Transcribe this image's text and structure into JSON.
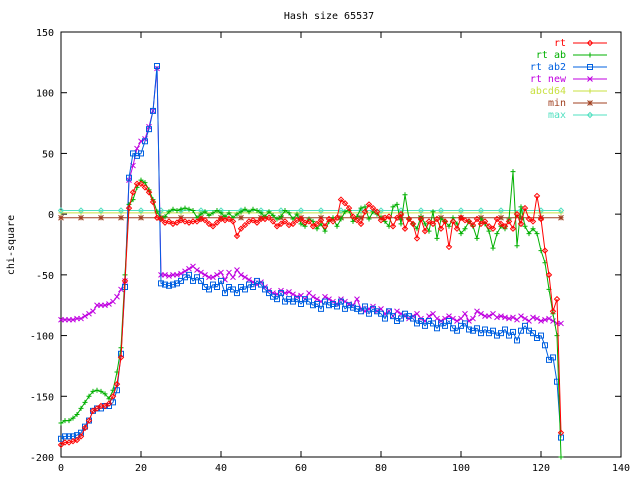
{
  "chart_data": {
    "type": "line",
    "title": "Hash size 65537",
    "xlabel": "",
    "ylabel": "chi-square",
    "xlim": [
      0,
      140
    ],
    "ylim": [
      -200,
      150
    ],
    "xticks": [
      0,
      20,
      40,
      60,
      80,
      100,
      120,
      140
    ],
    "yticks": [
      -200,
      -150,
      -100,
      -50,
      0,
      50,
      100,
      150
    ],
    "grid": false,
    "legend_position": "top-right",
    "series": [
      {
        "name": "rt",
        "color": "#ff0000",
        "marker": "diamond",
        "x": [
          0,
          1,
          2,
          3,
          4,
          5,
          6,
          7,
          8,
          9,
          10,
          11,
          12,
          13,
          14,
          15,
          16,
          17,
          18,
          19,
          20,
          21,
          22,
          23,
          24,
          25,
          26,
          27,
          28,
          29,
          30,
          31,
          32,
          33,
          34,
          35,
          36,
          37,
          38,
          39,
          40,
          41,
          42,
          43,
          44,
          45,
          46,
          47,
          48,
          49,
          50,
          51,
          52,
          53,
          54,
          55,
          56,
          57,
          58,
          59,
          60,
          61,
          62,
          63,
          64,
          65,
          66,
          67,
          68,
          69,
          70,
          71,
          72,
          73,
          74,
          75,
          76,
          77,
          78,
          79,
          80,
          81,
          82,
          83,
          84,
          85,
          86,
          87,
          88,
          89,
          90,
          91,
          92,
          93,
          94,
          95,
          96,
          97,
          98,
          99,
          100,
          101,
          102,
          103,
          104,
          105,
          106,
          107,
          108,
          109,
          110,
          111,
          112,
          113,
          114,
          115,
          116,
          117,
          118,
          119,
          120,
          121,
          122,
          123,
          124,
          125
        ],
        "y": [
          -190,
          -188,
          -188,
          -187,
          -186,
          -183,
          -176,
          -170,
          -162,
          -160,
          -158,
          -158,
          -156,
          -150,
          -140,
          -118,
          -55,
          5,
          18,
          25,
          25,
          22,
          18,
          10,
          -3,
          -4,
          -7,
          -6,
          -8,
          -7,
          -5,
          -6,
          -7,
          -6,
          -6,
          -4,
          -5,
          -8,
          -10,
          -7,
          -4,
          -5,
          -4,
          -6,
          -18,
          -12,
          -9,
          -6,
          -5,
          -7,
          -4,
          -4,
          -3,
          -6,
          -10,
          -8,
          -6,
          -9,
          -8,
          -5,
          -4,
          -7,
          -6,
          -10,
          -8,
          -5,
          -10,
          -4,
          -6,
          -3,
          12,
          9,
          5,
          -2,
          -5,
          -8,
          2,
          8,
          5,
          2,
          -5,
          -3,
          -2,
          -10,
          -3,
          0,
          -12,
          -4,
          -8,
          -20,
          -4,
          -14,
          -6,
          -8,
          -4,
          -12,
          -6,
          -27,
          -6,
          -12,
          -3,
          -5,
          -6,
          -9,
          -4,
          -8,
          -6,
          -10,
          -12,
          -4,
          -8,
          -10,
          -6,
          -12,
          0,
          -8,
          5,
          -4,
          -6,
          15,
          -4,
          -30,
          -50,
          -80,
          -70,
          -180
        ]
      },
      {
        "name": "rt ab",
        "color": "#00b000",
        "marker": "plus",
        "x": [
          0,
          1,
          2,
          3,
          4,
          5,
          6,
          7,
          8,
          9,
          10,
          11,
          12,
          13,
          14,
          15,
          16,
          17,
          18,
          19,
          20,
          21,
          22,
          23,
          24,
          25,
          26,
          27,
          28,
          29,
          30,
          31,
          32,
          33,
          34,
          35,
          36,
          37,
          38,
          39,
          40,
          41,
          42,
          43,
          44,
          45,
          46,
          47,
          48,
          49,
          50,
          51,
          52,
          53,
          54,
          55,
          56,
          57,
          58,
          59,
          60,
          61,
          62,
          63,
          64,
          65,
          66,
          67,
          68,
          69,
          70,
          71,
          72,
          73,
          74,
          75,
          76,
          77,
          78,
          79,
          80,
          81,
          82,
          83,
          84,
          85,
          86,
          87,
          88,
          89,
          90,
          91,
          92,
          93,
          94,
          95,
          96,
          97,
          98,
          99,
          100,
          101,
          102,
          103,
          104,
          105,
          106,
          107,
          108,
          109,
          110,
          111,
          112,
          113,
          114,
          115,
          116,
          117,
          118,
          119,
          120,
          121,
          122,
          123,
          124,
          125
        ],
        "y": [
          -172,
          -170,
          -170,
          -168,
          -165,
          -160,
          -155,
          -150,
          -146,
          -145,
          -146,
          -148,
          -152,
          -145,
          -130,
          -110,
          -50,
          8,
          12,
          22,
          28,
          26,
          20,
          12,
          2,
          -3,
          -2,
          2,
          4,
          3,
          4,
          5,
          4,
          3,
          -3,
          0,
          2,
          -1,
          1,
          3,
          1,
          -2,
          1,
          -3,
          0,
          2,
          4,
          2,
          4,
          3,
          1,
          -2,
          2,
          -1,
          -4,
          -2,
          3,
          1,
          -4,
          0,
          -8,
          -10,
          -4,
          -6,
          -12,
          -8,
          -14,
          -6,
          -3,
          -10,
          -4,
          2,
          3,
          -6,
          -2,
          5,
          6,
          -4,
          2,
          0,
          -3,
          -6,
          -10,
          6,
          8,
          -8,
          16,
          -4,
          -8,
          -12,
          -2,
          -8,
          -14,
          2,
          -20,
          -4,
          -6,
          -10,
          -3,
          -8,
          -16,
          -12,
          -6,
          -10,
          -20,
          -4,
          -8,
          -14,
          -28,
          -16,
          -10,
          -12,
          -4,
          35,
          -26,
          6,
          -10,
          -16,
          -12,
          -16,
          -30,
          -40,
          -62,
          -82,
          -100,
          -200
        ]
      },
      {
        "name": "rt ab2",
        "color": "#0060e0",
        "marker": "square",
        "x": [
          0,
          1,
          2,
          3,
          4,
          5,
          6,
          7,
          8,
          9,
          10,
          11,
          12,
          13,
          14,
          15,
          16,
          17,
          18,
          19,
          20,
          21,
          22,
          23,
          24,
          25,
          26,
          27,
          28,
          29,
          30,
          31,
          32,
          33,
          34,
          35,
          36,
          37,
          38,
          39,
          40,
          41,
          42,
          43,
          44,
          45,
          46,
          47,
          48,
          49,
          50,
          51,
          52,
          53,
          54,
          55,
          56,
          57,
          58,
          59,
          60,
          61,
          62,
          63,
          64,
          65,
          66,
          67,
          68,
          69,
          70,
          71,
          72,
          73,
          74,
          75,
          76,
          77,
          78,
          79,
          80,
          81,
          82,
          83,
          84,
          85,
          86,
          87,
          88,
          89,
          90,
          91,
          92,
          93,
          94,
          95,
          96,
          97,
          98,
          99,
          100,
          101,
          102,
          103,
          104,
          105,
          106,
          107,
          108,
          109,
          110,
          111,
          112,
          113,
          114,
          115,
          116,
          117,
          118,
          119,
          120,
          121,
          122,
          123,
          124,
          125
        ],
        "y": [
          -185,
          -183,
          -183,
          -183,
          -182,
          -180,
          -175,
          -170,
          -162,
          -160,
          -160,
          -158,
          -158,
          -155,
          -145,
          -115,
          -60,
          30,
          50,
          48,
          50,
          60,
          70,
          85,
          122,
          -57,
          -58,
          -59,
          -58,
          -57,
          -55,
          -52,
          -50,
          -55,
          -52,
          -55,
          -60,
          -62,
          -58,
          -60,
          -55,
          -65,
          -60,
          -62,
          -65,
          -60,
          -62,
          -58,
          -60,
          -55,
          -58,
          -62,
          -65,
          -68,
          -70,
          -65,
          -72,
          -70,
          -72,
          -70,
          -74,
          -70,
          -72,
          -75,
          -74,
          -78,
          -72,
          -75,
          -74,
          -76,
          -72,
          -78,
          -75,
          -77,
          -78,
          -80,
          -76,
          -82,
          -78,
          -80,
          -82,
          -86,
          -80,
          -84,
          -88,
          -86,
          -82,
          -84,
          -86,
          -90,
          -88,
          -92,
          -88,
          -90,
          -94,
          -90,
          -92,
          -88,
          -94,
          -96,
          -92,
          -90,
          -95,
          -96,
          -94,
          -98,
          -95,
          -98,
          -96,
          -100,
          -98,
          -95,
          -100,
          -97,
          -104,
          -96,
          -92,
          -96,
          -98,
          -102,
          -100,
          -108,
          -120,
          -118,
          -138,
          -184
        ]
      },
      {
        "name": "rt new",
        "color": "#c000e0",
        "marker": "x",
        "x": [
          0,
          1,
          2,
          3,
          4,
          5,
          6,
          7,
          8,
          9,
          10,
          11,
          12,
          13,
          14,
          15,
          16,
          17,
          18,
          19,
          20,
          21,
          22,
          23,
          24,
          25,
          26,
          27,
          28,
          29,
          30,
          31,
          32,
          33,
          34,
          35,
          36,
          37,
          38,
          39,
          40,
          41,
          42,
          43,
          44,
          45,
          46,
          47,
          48,
          49,
          50,
          51,
          52,
          53,
          54,
          55,
          56,
          57,
          58,
          59,
          60,
          61,
          62,
          63,
          64,
          65,
          66,
          67,
          68,
          69,
          70,
          71,
          72,
          73,
          74,
          75,
          76,
          77,
          78,
          79,
          80,
          81,
          82,
          83,
          84,
          85,
          86,
          87,
          88,
          89,
          90,
          91,
          92,
          93,
          94,
          95,
          96,
          97,
          98,
          99,
          100,
          101,
          102,
          103,
          104,
          105,
          106,
          107,
          108,
          109,
          110,
          111,
          112,
          113,
          114,
          115,
          116,
          117,
          118,
          119,
          120,
          121,
          122,
          123,
          124,
          125
        ],
        "y": [
          -87,
          -87,
          -87,
          -87,
          -86,
          -86,
          -84,
          -82,
          -80,
          -75,
          -75,
          -75,
          -74,
          -72,
          -68,
          -62,
          -55,
          28,
          40,
          54,
          60,
          62,
          72,
          85,
          120,
          -50,
          -50,
          -51,
          -50,
          -50,
          -49,
          -47,
          -45,
          -43,
          -46,
          -48,
          -50,
          -52,
          -52,
          -50,
          -48,
          -54,
          -48,
          -52,
          -46,
          -50,
          -52,
          -54,
          -56,
          -58,
          -56,
          -60,
          -63,
          -65,
          -66,
          -63,
          -65,
          -64,
          -66,
          -68,
          -67,
          -70,
          -65,
          -68,
          -70,
          -72,
          -68,
          -70,
          -72,
          -74,
          -70,
          -72,
          -74,
          -75,
          -70,
          -78,
          -80,
          -78,
          -76,
          -80,
          -78,
          -82,
          -80,
          -84,
          -80,
          -82,
          -84,
          -86,
          -84,
          -82,
          -86,
          -88,
          -84,
          -82,
          -86,
          -88,
          -86,
          -84,
          -86,
          -88,
          -86,
          -82,
          -88,
          -86,
          -80,
          -82,
          -84,
          -84,
          -82,
          -85,
          -84,
          -85,
          -86,
          -85,
          -87,
          -84,
          -86,
          -88,
          -85,
          -86,
          -88,
          -87,
          -86,
          -88,
          -90,
          -90
        ]
      },
      {
        "name": "abcd64",
        "color": "#c8e040",
        "marker": "plus",
        "x": [
          0,
          5,
          10,
          15,
          20,
          25,
          30,
          35,
          40,
          45,
          50,
          55,
          60,
          65,
          70,
          75,
          80,
          85,
          90,
          95,
          100,
          105,
          110,
          115,
          120,
          125
        ],
        "y": [
          1,
          1,
          1,
          1,
          1,
          1,
          1,
          1,
          1,
          1,
          1,
          1,
          1,
          1,
          1,
          1,
          1,
          1,
          1,
          1,
          1,
          1,
          1,
          1,
          1,
          1
        ]
      },
      {
        "name": "min",
        "color": "#a04020",
        "marker": "star",
        "x": [
          0,
          5,
          10,
          15,
          20,
          25,
          30,
          35,
          40,
          45,
          50,
          55,
          60,
          65,
          70,
          75,
          80,
          85,
          90,
          95,
          100,
          105,
          110,
          115,
          120,
          125
        ],
        "y": [
          -3,
          -3,
          -3,
          -3,
          -3,
          -3,
          -3,
          -3,
          -3,
          -3,
          -3,
          -3,
          -3,
          -3,
          -3,
          -3,
          -3,
          -3,
          -3,
          -3,
          -3,
          -3,
          -3,
          -3,
          -3,
          -3
        ]
      },
      {
        "name": "max",
        "color": "#50e0c0",
        "marker": "diamond",
        "x": [
          0,
          5,
          10,
          15,
          20,
          25,
          30,
          35,
          40,
          45,
          50,
          55,
          60,
          65,
          70,
          75,
          80,
          85,
          90,
          95,
          100,
          105,
          110,
          115,
          120,
          125
        ],
        "y": [
          3,
          3,
          3,
          3,
          3,
          3,
          3,
          3,
          3,
          3,
          3,
          3,
          3,
          3,
          3,
          3,
          3,
          3,
          3,
          3,
          3,
          3,
          3,
          3,
          3,
          3
        ]
      }
    ]
  }
}
